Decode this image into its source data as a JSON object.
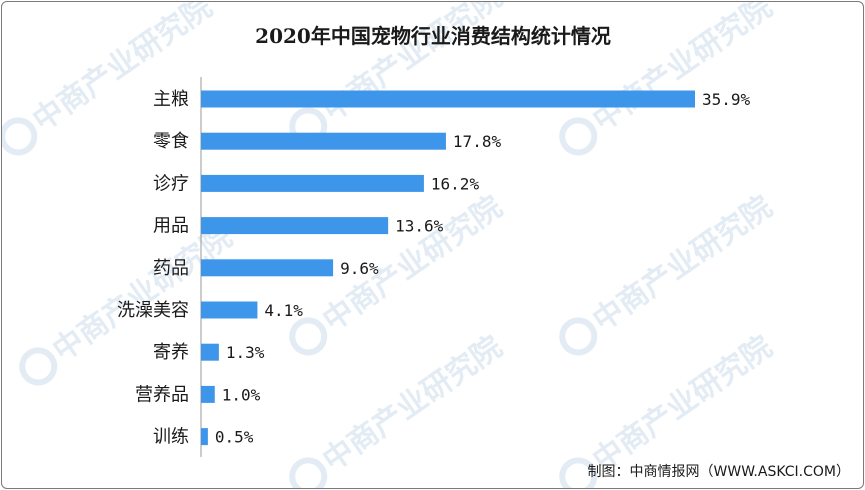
{
  "chart_data": {
    "type": "bar",
    "orientation": "horizontal",
    "title": "2020年中国宠物行业消费结构统计情况",
    "categories": [
      "主粮",
      "零食",
      "诊疗",
      "用品",
      "药品",
      "洗澡美容",
      "寄养",
      "营养品",
      "训练"
    ],
    "values": [
      35.9,
      17.8,
      16.2,
      13.6,
      9.6,
      4.1,
      1.3,
      1.0,
      0.5
    ],
    "value_labels": [
      "35.9%",
      "17.8%",
      "16.2%",
      "13.6%",
      "9.6%",
      "4.1%",
      "1.3%",
      "1.0%",
      "0.5%"
    ],
    "unit": "%",
    "xlim": [
      0,
      35.9
    ],
    "grid": false,
    "legend": "none",
    "bar_color": "#3d96ea",
    "source": "制图：中商情报网（WWW.ASKCI.COM）",
    "watermark": "中商产业研究院"
  }
}
